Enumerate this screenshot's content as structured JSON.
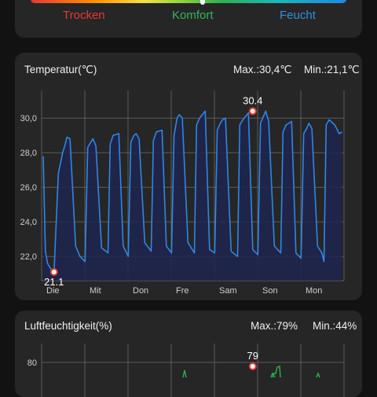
{
  "comfort_scale": {
    "dry_label": "Trocken",
    "comfort_label": "Komfort",
    "humid_label": "Feucht",
    "colors": {
      "dry": "#e53935",
      "comfort": "#36b55a",
      "humid": "#2f8ee0"
    }
  },
  "temperature": {
    "title": "Temperatur(℃)",
    "max_label": "Max.:30,4℃",
    "min_label": "Min.:21,1℃"
  },
  "humidity": {
    "title": "Luftfeuchtigkeit(%)",
    "max_label": "Max.:79%",
    "min_label": "Min.:44%"
  },
  "chart_data": [
    {
      "type": "line",
      "title": "Temperatur(℃)",
      "x_tick_labels": [
        "Die",
        "Mit",
        "Don",
        "Fre",
        "Sam",
        "Son",
        "Mon"
      ],
      "y_ticks": [
        "22,0",
        "24,0",
        "26,0",
        "28,0",
        "30,0"
      ],
      "ylim": [
        20.6,
        31.6
      ],
      "grid": true,
      "line_color": "#2f86e4",
      "fill_color": "#1f2550",
      "series": [
        {
          "x_days": [
            0,
            0.05,
            0.1,
            0.17,
            0.25,
            0.35,
            0.45,
            0.5,
            0.55,
            0.62,
            0.75,
            0.85,
            0.97,
            1.03,
            1.1,
            1.15,
            1.22,
            1.35,
            1.5,
            1.55,
            1.62,
            1.75,
            1.85,
            1.97,
            2.03,
            2.1,
            2.15,
            2.22,
            2.35,
            2.5,
            2.55,
            2.62,
            2.75,
            2.85,
            2.97,
            3.03,
            3.1,
            3.15,
            3.22,
            3.35,
            3.5,
            3.55,
            3.62,
            3.75,
            3.85,
            3.97,
            4.03,
            4.1,
            4.15,
            4.22,
            4.35,
            4.5,
            4.55,
            4.62,
            4.75,
            4.85,
            4.97,
            5.03,
            5.1,
            5.15,
            5.22,
            5.35,
            5.5,
            5.55,
            5.62,
            5.75,
            5.85,
            5.97,
            6.03,
            6.1,
            6.15,
            6.22,
            6.35,
            6.45,
            6.5,
            6.55,
            6.62,
            6.75,
            6.85,
            6.92
          ],
          "y": [
            27.8,
            22.3,
            21.6,
            21.3,
            21.1,
            26.8,
            28.0,
            28.4,
            28.9,
            28.8,
            22.6,
            22.0,
            21.7,
            28.3,
            28.6,
            28.8,
            28.4,
            22.5,
            22.2,
            28.5,
            29.0,
            29.1,
            22.6,
            22.0,
            28.6,
            29.0,
            29.1,
            28.8,
            22.8,
            22.3,
            28.7,
            29.2,
            29.3,
            22.6,
            22.2,
            29.0,
            30.0,
            30.2,
            30.0,
            22.8,
            22.2,
            29.6,
            30.0,
            30.4,
            22.4,
            22.2,
            29.3,
            29.7,
            29.9,
            30.0,
            22.3,
            22.0,
            29.6,
            29.9,
            30.3,
            22.4,
            22.1,
            29.7,
            30.1,
            30.4,
            29.8,
            22.6,
            22.2,
            29.2,
            29.6,
            29.8,
            22.2,
            21.9,
            29.1,
            29.4,
            29.7,
            29.4,
            22.6,
            22.2,
            21.7,
            29.6,
            29.9,
            29.6,
            29.1,
            29.2
          ]
        }
      ],
      "annotations": [
        {
          "label": "30.4",
          "x_day": 4.85,
          "y": 30.4,
          "position": "above"
        },
        {
          "label": "21.1",
          "x_day": 0.25,
          "y": 21.1,
          "position": "below"
        }
      ]
    },
    {
      "type": "line",
      "title": "Luftfeuchtigkeit(%)",
      "y_ticks": [
        "80"
      ],
      "ylim": [
        75,
        85
      ],
      "grid": true,
      "annotations": [
        {
          "label": "79",
          "x_day": 4.85,
          "y": 79,
          "position": "above"
        }
      ]
    }
  ]
}
